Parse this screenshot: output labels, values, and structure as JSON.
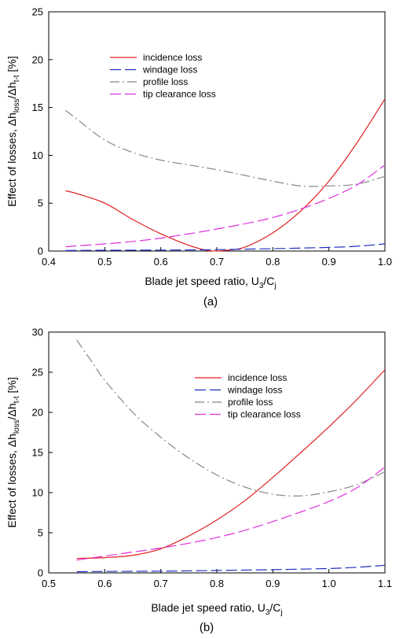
{
  "chart_data": [
    {
      "type": "line",
      "panel_label": "(a)",
      "xlabel": {
        "main": "Blade jet speed ratio, U",
        "sub1": "3",
        "mid": "/C",
        "sub2": "j"
      },
      "ylabel": {
        "main": "Effect of losses, Δh",
        "sub1": "loss",
        "mid": "/Δh",
        "sub2": "t-t",
        "tail": " [%]"
      },
      "xlim": [
        0.4,
        1.0
      ],
      "ylim": [
        0,
        25
      ],
      "xticks": [
        "0.4",
        "0.5",
        "0.6",
        "0.7",
        "0.8",
        "0.9",
        "1.0"
      ],
      "yticks": [
        "0",
        "5",
        "10",
        "15",
        "20",
        "25"
      ],
      "grid": false,
      "legend_position": "top-center",
      "series": [
        {
          "name": "incidence loss",
          "color": "#e02020",
          "dash": "solid",
          "x": [
            0.43,
            0.45,
            0.5,
            0.55,
            0.6,
            0.65,
            0.68,
            0.7,
            0.72,
            0.75,
            0.8,
            0.85,
            0.9,
            0.95,
            1.0
          ],
          "y": [
            6.3,
            6.0,
            5.0,
            3.3,
            1.8,
            0.6,
            0.1,
            0.0,
            0.1,
            0.4,
            1.9,
            4.2,
            7.3,
            11.3,
            15.9
          ]
        },
        {
          "name": "windage loss",
          "color": "#2030c0",
          "dash": "long",
          "x": [
            0.43,
            0.5,
            0.6,
            0.7,
            0.8,
            0.9,
            0.95,
            1.0
          ],
          "y": [
            0.05,
            0.08,
            0.1,
            0.15,
            0.25,
            0.38,
            0.5,
            0.75
          ]
        },
        {
          "name": "profile loss",
          "color": "#888888",
          "dash": "dashdot",
          "x": [
            0.43,
            0.45,
            0.5,
            0.55,
            0.6,
            0.65,
            0.7,
            0.75,
            0.8,
            0.85,
            0.9,
            0.95,
            1.0
          ],
          "y": [
            14.7,
            13.8,
            11.6,
            10.3,
            9.5,
            9.0,
            8.5,
            7.9,
            7.3,
            6.8,
            6.8,
            7.0,
            7.8
          ]
        },
        {
          "name": "tip clearance loss",
          "color": "#e030e0",
          "dash": "long",
          "x": [
            0.43,
            0.5,
            0.55,
            0.6,
            0.65,
            0.7,
            0.75,
            0.8,
            0.85,
            0.9,
            0.95,
            1.0
          ],
          "y": [
            0.45,
            0.75,
            1.0,
            1.35,
            1.8,
            2.3,
            2.85,
            3.5,
            4.4,
            5.5,
            6.9,
            9.0
          ]
        }
      ]
    },
    {
      "type": "line",
      "panel_label": "(b)",
      "xlabel": {
        "main": "Blade jet speed ratio, U",
        "sub1": "3",
        "mid": "/C",
        "sub2": "j"
      },
      "ylabel": {
        "main": "Effect of losses, Δh",
        "sub1": "loss",
        "mid": "/Δh",
        "sub2": "t-t",
        "tail": " [%]"
      },
      "xlim": [
        0.5,
        1.1
      ],
      "ylim": [
        0,
        30
      ],
      "xticks": [
        "0.5",
        "0.6",
        "0.7",
        "0.8",
        "0.9",
        "1.0",
        "1.1"
      ],
      "yticks": [
        "0",
        "5",
        "10",
        "15",
        "20",
        "25",
        "30"
      ],
      "grid": false,
      "legend_position": "top-right",
      "series": [
        {
          "name": "incidence loss",
          "color": "#e02020",
          "dash": "solid",
          "x": [
            0.55,
            0.6,
            0.65,
            0.7,
            0.75,
            0.8,
            0.85,
            0.9,
            0.95,
            1.0,
            1.05,
            1.1
          ],
          "y": [
            1.8,
            1.9,
            2.2,
            3.0,
            4.6,
            6.6,
            9.0,
            11.9,
            15.0,
            18.2,
            21.6,
            25.3
          ]
        },
        {
          "name": "windage loss",
          "color": "#2030c0",
          "dash": "long",
          "x": [
            0.55,
            0.6,
            0.7,
            0.8,
            0.9,
            1.0,
            1.05,
            1.1
          ],
          "y": [
            0.15,
            0.18,
            0.22,
            0.3,
            0.4,
            0.55,
            0.7,
            0.95
          ]
        },
        {
          "name": "profile loss",
          "color": "#888888",
          "dash": "dashdot",
          "x": [
            0.55,
            0.58,
            0.6,
            0.65,
            0.7,
            0.75,
            0.8,
            0.85,
            0.9,
            0.95,
            1.0,
            1.05,
            1.1
          ],
          "y": [
            29.0,
            26.0,
            24.0,
            20.0,
            16.9,
            14.3,
            12.2,
            10.7,
            9.8,
            9.6,
            10.1,
            11.0,
            12.6
          ]
        },
        {
          "name": "tip clearance loss",
          "color": "#e030e0",
          "dash": "long",
          "x": [
            0.55,
            0.6,
            0.65,
            0.7,
            0.75,
            0.8,
            0.85,
            0.9,
            0.95,
            1.0,
            1.05,
            1.1
          ],
          "y": [
            1.6,
            2.1,
            2.6,
            3.1,
            3.7,
            4.4,
            5.3,
            6.4,
            7.6,
            8.9,
            10.6,
            13.2
          ]
        }
      ]
    }
  ]
}
